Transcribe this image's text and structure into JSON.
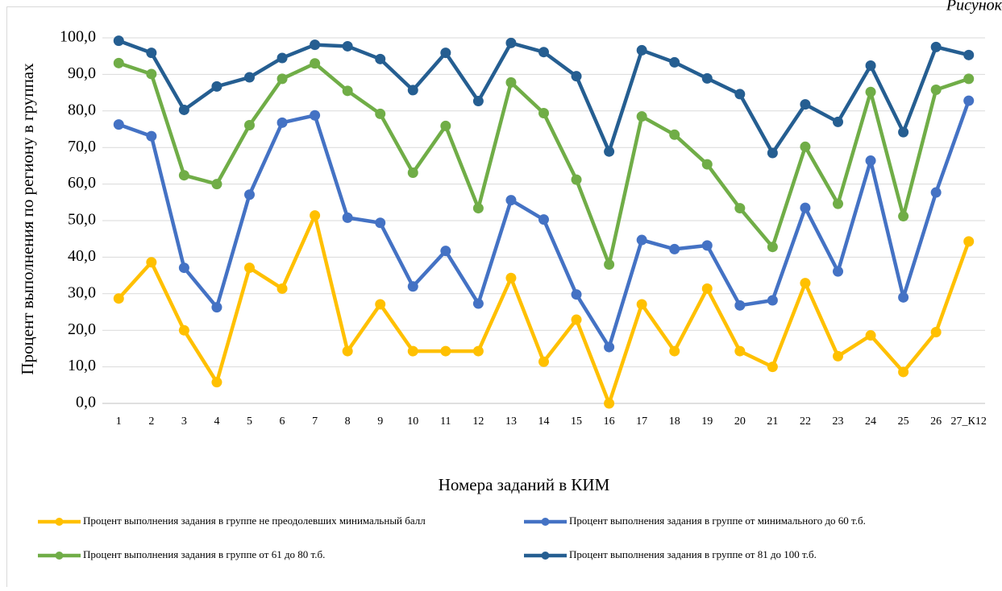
{
  "chart_data": {
    "type": "line",
    "caption": "Рисунок",
    "x_label": "Номера заданий в КИМ",
    "y_label": "Процент выполнения по региону в группах",
    "categories": [
      "1",
      "2",
      "3",
      "4",
      "5",
      "6",
      "7",
      "8",
      "9",
      "10",
      "11",
      "12",
      "13",
      "14",
      "15",
      "16",
      "17",
      "18",
      "19",
      "20",
      "21",
      "22",
      "23",
      "24",
      "25",
      "26",
      "27_К12"
    ],
    "ylim": [
      0,
      100
    ],
    "yticks": [
      {
        "value": 0,
        "label": "0,0"
      },
      {
        "value": 10,
        "label": "10,0"
      },
      {
        "value": 20,
        "label": "20,0"
      },
      {
        "value": 30,
        "label": "30,0"
      },
      {
        "value": 40,
        "label": "40,0"
      },
      {
        "value": 50,
        "label": "50,0"
      },
      {
        "value": 60,
        "label": "60,0"
      },
      {
        "value": 70,
        "label": "70,0"
      },
      {
        "value": 80,
        "label": "80,0"
      },
      {
        "value": 90,
        "label": "90,0"
      },
      {
        "value": 100,
        "label": "100,0"
      }
    ],
    "grid": true,
    "legend": "bottom",
    "series": [
      {
        "name": "Процент выполнения задания в группе не преодолевших минимальный балл",
        "color": "#FFC000",
        "values": [
          28.7,
          38.6,
          20.0,
          5.8,
          37.1,
          31.4,
          51.4,
          14.3,
          27.1,
          14.3,
          14.3,
          14.3,
          34.3,
          11.4,
          22.9,
          0.0,
          27.1,
          14.3,
          31.4,
          14.3,
          10.0,
          32.9,
          12.9,
          18.6,
          8.6,
          19.5,
          44.3
        ]
      },
      {
        "name": "Процент выполнения задания в группе от минимального до 60 т.б.",
        "color": "#4472C4",
        "values": [
          76.3,
          73.1,
          37.1,
          26.3,
          57.1,
          76.8,
          78.8,
          50.8,
          49.4,
          32.0,
          41.7,
          27.3,
          55.6,
          50.3,
          29.8,
          15.4,
          44.7,
          42.2,
          43.2,
          26.8,
          28.2,
          53.5,
          36.1,
          66.4,
          29.0,
          57.7,
          82.8
        ]
      },
      {
        "name": "Процент выполнения задания в группе от 61 до 80 т.б.",
        "color": "#70AD47",
        "values": [
          93.1,
          90.1,
          62.4,
          60.0,
          76.1,
          88.8,
          93.0,
          85.5,
          79.2,
          63.1,
          75.9,
          53.4,
          87.8,
          79.4,
          61.2,
          38.0,
          78.5,
          73.5,
          65.4,
          53.4,
          42.8,
          70.2,
          54.6,
          85.2,
          51.2,
          85.8,
          88.8
        ]
      },
      {
        "name": "Процент выполнения задания в группе от 81 до 100 т.б.",
        "color": "#255E91",
        "values": [
          99.2,
          95.9,
          80.3,
          86.7,
          89.2,
          94.5,
          98.1,
          97.7,
          94.2,
          85.7,
          95.9,
          82.7,
          98.6,
          96.1,
          89.5,
          68.9,
          96.6,
          93.3,
          88.9,
          84.6,
          68.5,
          81.8,
          77.0,
          92.4,
          74.2,
          97.5,
          95.3
        ]
      }
    ]
  }
}
